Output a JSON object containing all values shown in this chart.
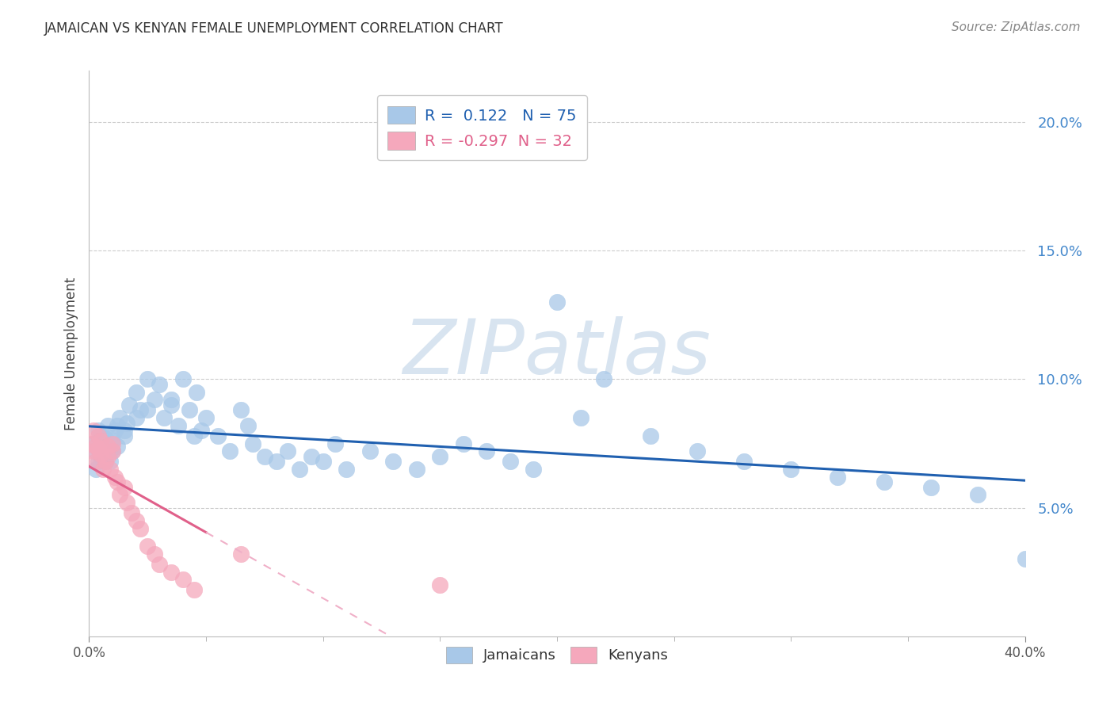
{
  "title": "JAMAICAN VS KENYAN FEMALE UNEMPLOYMENT CORRELATION CHART",
  "source": "Source: ZipAtlas.com",
  "ylabel": "Female Unemployment",
  "y_ticks": [
    0.05,
    0.1,
    0.15,
    0.2
  ],
  "y_tick_labels": [
    "5.0%",
    "10.0%",
    "15.0%",
    "20.0%"
  ],
  "x_range": [
    0.0,
    0.4
  ],
  "y_range": [
    0.0,
    0.22
  ],
  "r_jamaican": 0.122,
  "n_jamaican": 75,
  "r_kenyan": -0.297,
  "n_kenyan": 32,
  "jamaican_color": "#a8c8e8",
  "kenyan_color": "#f5a8bc",
  "trend_jamaican_color": "#2060b0",
  "trend_kenyan_color": "#e0608a",
  "trend_kenyan_dashed_color": "#f0b0c8",
  "watermark_color": "#d8e4f0",
  "legend_r_color": "#2060b0",
  "legend_r2_color": "#e0608a",
  "jamaicans_x": [
    0.002,
    0.003,
    0.004,
    0.004,
    0.005,
    0.005,
    0.006,
    0.007,
    0.007,
    0.008,
    0.009,
    0.01,
    0.01,
    0.011,
    0.012,
    0.012,
    0.013,
    0.015,
    0.016,
    0.017,
    0.02,
    0.022,
    0.025,
    0.028,
    0.03,
    0.032,
    0.035,
    0.038,
    0.04,
    0.043,
    0.046,
    0.048,
    0.05,
    0.055,
    0.06,
    0.065,
    0.068,
    0.07,
    0.075,
    0.08,
    0.085,
    0.09,
    0.095,
    0.1,
    0.105,
    0.11,
    0.12,
    0.13,
    0.14,
    0.15,
    0.16,
    0.17,
    0.18,
    0.19,
    0.2,
    0.21,
    0.22,
    0.24,
    0.26,
    0.28,
    0.3,
    0.32,
    0.34,
    0.36,
    0.38,
    0.4,
    0.003,
    0.005,
    0.007,
    0.009,
    0.015,
    0.02,
    0.025,
    0.035,
    0.045
  ],
  "jamaicans_y": [
    0.075,
    0.072,
    0.08,
    0.068,
    0.074,
    0.078,
    0.073,
    0.07,
    0.077,
    0.082,
    0.068,
    0.076,
    0.072,
    0.08,
    0.074,
    0.082,
    0.085,
    0.078,
    0.083,
    0.09,
    0.095,
    0.088,
    0.1,
    0.092,
    0.098,
    0.085,
    0.09,
    0.082,
    0.1,
    0.088,
    0.095,
    0.08,
    0.085,
    0.078,
    0.072,
    0.088,
    0.082,
    0.075,
    0.07,
    0.068,
    0.072,
    0.065,
    0.07,
    0.068,
    0.075,
    0.065,
    0.072,
    0.068,
    0.065,
    0.07,
    0.075,
    0.072,
    0.068,
    0.065,
    0.13,
    0.085,
    0.1,
    0.078,
    0.072,
    0.068,
    0.065,
    0.062,
    0.06,
    0.058,
    0.055,
    0.03,
    0.065,
    0.07,
    0.068,
    0.072,
    0.08,
    0.085,
    0.088,
    0.092,
    0.078
  ],
  "kenyans_x": [
    0.001,
    0.002,
    0.002,
    0.003,
    0.003,
    0.004,
    0.004,
    0.005,
    0.005,
    0.006,
    0.007,
    0.008,
    0.008,
    0.009,
    0.01,
    0.01,
    0.011,
    0.012,
    0.013,
    0.015,
    0.016,
    0.018,
    0.02,
    0.022,
    0.025,
    0.028,
    0.03,
    0.035,
    0.04,
    0.045,
    0.065,
    0.15
  ],
  "kenyans_y": [
    0.075,
    0.072,
    0.08,
    0.068,
    0.074,
    0.073,
    0.078,
    0.071,
    0.076,
    0.065,
    0.068,
    0.07,
    0.074,
    0.065,
    0.072,
    0.075,
    0.062,
    0.06,
    0.055,
    0.058,
    0.052,
    0.048,
    0.045,
    0.042,
    0.035,
    0.032,
    0.028,
    0.025,
    0.022,
    0.018,
    0.032,
    0.02
  ]
}
